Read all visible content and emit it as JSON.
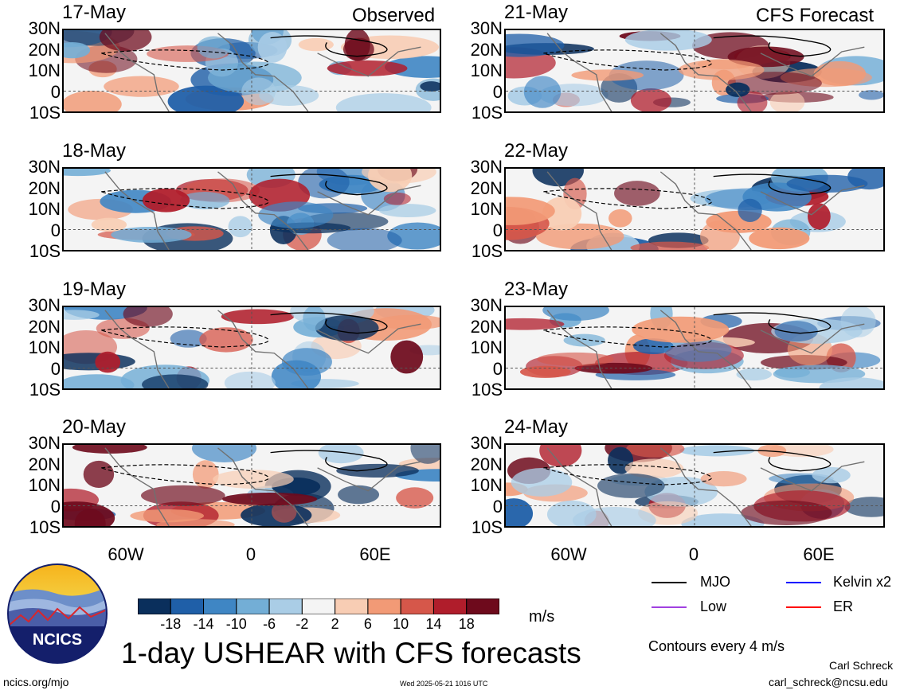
{
  "panels": {
    "observed_caption": "Observed",
    "forecast_caption": "CFS Forecast",
    "left_dates": [
      "17-May",
      "18-May",
      "19-May",
      "20-May"
    ],
    "right_dates": [
      "21-May",
      "22-May",
      "23-May",
      "24-May"
    ],
    "lat_labels": [
      "30N",
      "20N",
      "10N",
      "0",
      "10S"
    ],
    "lon_labels": [
      "60W",
      "0",
      "60E"
    ]
  },
  "colorbar": {
    "tick_labels": [
      "-18",
      "-14",
      "-10",
      "-6",
      "-2",
      "2",
      "6",
      "10",
      "14",
      "18"
    ],
    "unit": "m/s",
    "colors": [
      "#0a2f5c",
      "#1f5fa8",
      "#3f86c4",
      "#73aed6",
      "#aacde6",
      "#f4f4f4",
      "#f8cdb4",
      "#f29a76",
      "#d6574a",
      "#b01d2b",
      "#6e0a1c"
    ]
  },
  "legend": {
    "items": [
      {
        "label": "MJO",
        "color": "#000000"
      },
      {
        "label": "Kelvin x2",
        "color": "#0000ff"
      },
      {
        "label": "Low",
        "color": "#a040e0"
      },
      {
        "label": "ER",
        "color": "#ff0000"
      }
    ],
    "contour_note": "Contours every 4 m/s"
  },
  "title": "1-day USHEAR with CFS forecasts",
  "logo_text": "NCICS",
  "footer": {
    "site": "ncics.org/mjo",
    "timestamp": "Wed 2025-05-21 1016 UTC",
    "author": "Carl Schreck",
    "email": "carl_schreck@ncsu.edu"
  }
}
